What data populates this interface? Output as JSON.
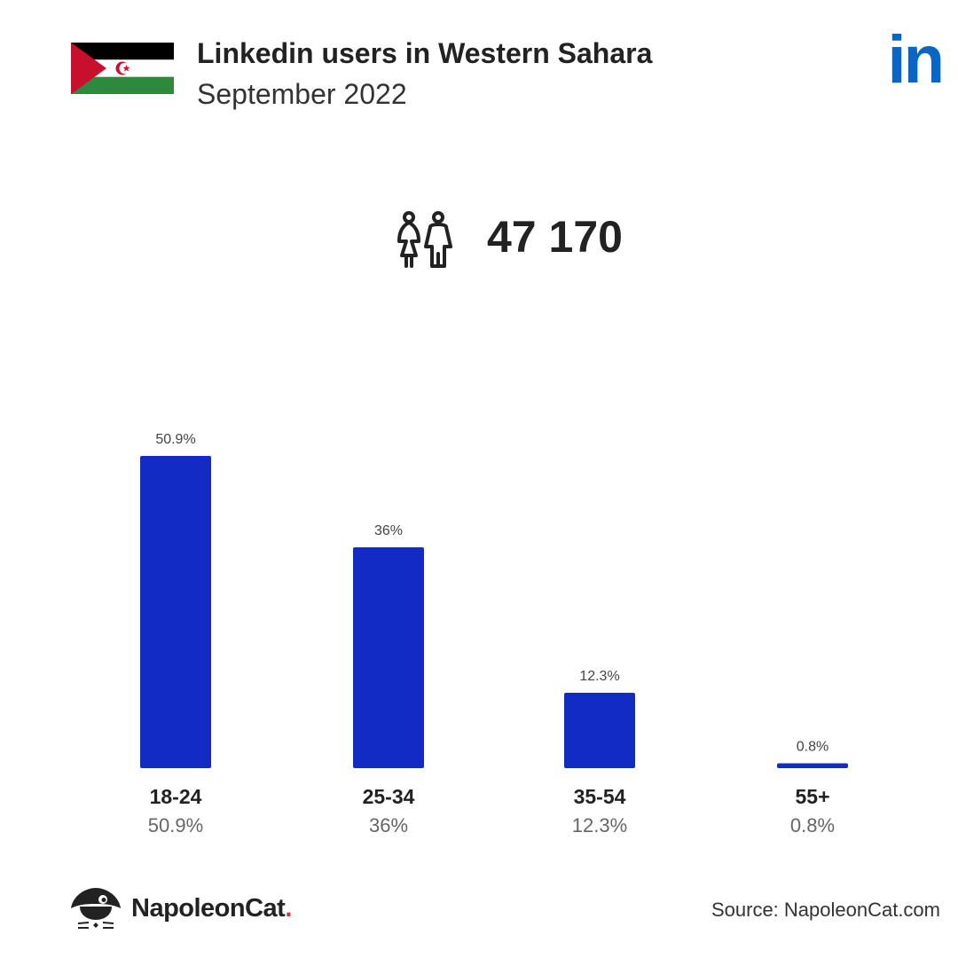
{
  "header": {
    "title": "Linkedin users in Western Sahara",
    "subtitle": "September 2022"
  },
  "brand_logo": {
    "icon": "linkedin-logo",
    "text": "in",
    "color": "#0a66c2"
  },
  "summary": {
    "icon": "users-icon",
    "total_users": "47 170"
  },
  "chart_data": {
    "type": "bar",
    "categories": [
      "18-24",
      "25-34",
      "35-54",
      "55+"
    ],
    "values": [
      50.9,
      36,
      12.3,
      0.8
    ],
    "bar_labels": [
      "50.9%",
      "36%",
      "12.3%",
      "0.8%"
    ],
    "category_value_labels": [
      "50.9%",
      "36%",
      "12.3%",
      "0.8%"
    ],
    "unit": "%",
    "ylim": [
      0,
      50.9
    ],
    "bar_color": "#112bc4",
    "grid": false
  },
  "footer": {
    "brand_name": "NapoleonCat",
    "brand_dot": ".",
    "source": "Source: NapoleonCat.com"
  },
  "colors": {
    "flag_black": "#000000",
    "flag_white": "#ffffff",
    "flag_green": "#2d8a3d",
    "flag_red": "#c8102e",
    "accent_red": "#e22b3b"
  }
}
